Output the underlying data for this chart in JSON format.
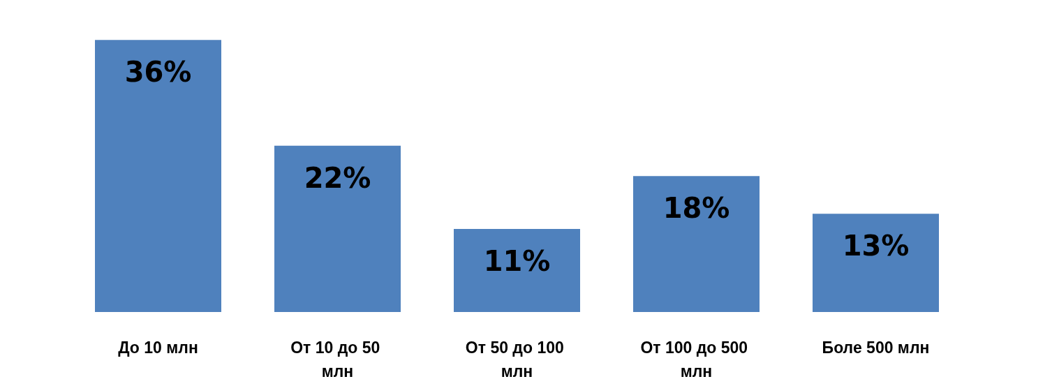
{
  "chart_data": {
    "type": "bar",
    "categories": [
      "До 10 млн",
      "От 10 до 50 млн",
      "От 50 до 100 млн",
      "От 100 до 500 млн",
      "Боле 500 млн"
    ],
    "values": [
      36,
      22,
      11,
      18,
      13
    ],
    "value_labels": [
      "36%",
      "22%",
      "11%",
      "18%",
      "13%"
    ],
    "color": "#4f81bd",
    "grid": false
  }
}
